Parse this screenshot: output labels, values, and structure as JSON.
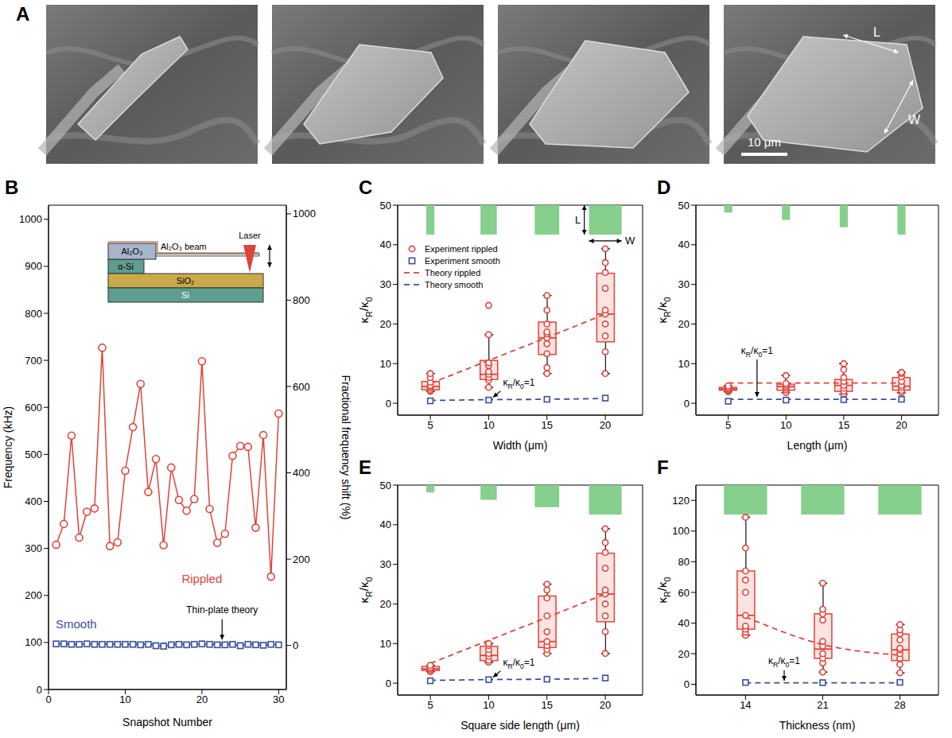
{
  "chart_data": [
    {
      "panel": "A",
      "type": "image",
      "annotations": [
        "L",
        "W",
        "10 μm"
      ]
    },
    {
      "panel": "B",
      "type": "line",
      "xlabel": "Snapshot Number",
      "ylabel": "Frequency (kHz)",
      "y2label": "Fractional frequency shift (%)",
      "x": [
        1,
        2,
        3,
        4,
        5,
        6,
        7,
        8,
        9,
        10,
        11,
        12,
        13,
        14,
        15,
        16,
        17,
        18,
        19,
        20,
        21,
        22,
        23,
        24,
        25,
        26,
        27,
        28,
        29,
        30
      ],
      "xlim": [
        0,
        31
      ],
      "xticks": [
        0,
        10,
        20,
        30
      ],
      "ylim": [
        0,
        1030
      ],
      "yticks": [
        0,
        100,
        200,
        300,
        400,
        500,
        600,
        700,
        800,
        900,
        1000
      ],
      "y2lim": [
        -102,
        1020
      ],
      "y2ticks": [
        0,
        200,
        400,
        600,
        800,
        1000
      ],
      "inset_labels": [
        "Al₂O₃",
        "α-Si",
        "SiO₂",
        "Si",
        "Al₂O₃ beam",
        "Laser"
      ],
      "series": [
        {
          "name": "Rippled",
          "color": "#e0433a",
          "marker": "circle",
          "line_style": "solid",
          "values": [
            308,
            352,
            540,
            323,
            378,
            385,
            727,
            305,
            313,
            465,
            558,
            650,
            420,
            490,
            307,
            472,
            403,
            380,
            405,
            698,
            384,
            312,
            331,
            497,
            518,
            516,
            344,
            541,
            240,
            587
          ]
        },
        {
          "name": "Smooth",
          "color": "#3a4f9e",
          "marker": "square",
          "line_style": "solid",
          "values": [
            97,
            97,
            96,
            96,
            97,
            96,
            96,
            96,
            96,
            96,
            96,
            95,
            96,
            93,
            92,
            95,
            96,
            95,
            96,
            97,
            96,
            95,
            95,
            96,
            93,
            96,
            95,
            94,
            96,
            95
          ]
        },
        {
          "name": "Thin-plate theory",
          "color": "#5cc8e6",
          "line_style": "dashed",
          "values": [
            98,
            98,
            98,
            98,
            98,
            98,
            98,
            98,
            98,
            98,
            98,
            98,
            98,
            98,
            98,
            98,
            98,
            98,
            98,
            98,
            98,
            98,
            98,
            98,
            98,
            98,
            98,
            98,
            98,
            98
          ]
        }
      ]
    },
    {
      "panel": "C",
      "type": "box",
      "xlabel": "Width (μm)",
      "ylabel": "κR/κ0",
      "x": [
        5,
        10,
        15,
        20
      ],
      "xlim": [
        2.2,
        23.2
      ],
      "xticks": [
        5,
        10,
        15,
        20
      ],
      "ylim": [
        -3,
        50
      ],
      "yticks": [
        0,
        10,
        20,
        30,
        40,
        50
      ],
      "legend": "upper left",
      "annotations": [
        "κR/κ0=1"
      ],
      "dimension_labels": [
        "L",
        "W"
      ],
      "series": [
        {
          "name": "Experiment rippled",
          "type": "box",
          "color": "#e0433a",
          "marker": "circle",
          "whisker_low": [
            3.0,
            4.0,
            7.5,
            7.5
          ],
          "q1": [
            3.4,
            6.0,
            12.3,
            15.5
          ],
          "median": [
            4.2,
            7.3,
            16.5,
            22.5
          ],
          "q3": [
            5.5,
            10.8,
            20.5,
            32.8
          ],
          "whisker_high": [
            7.5,
            17.3,
            27.2,
            39.0
          ],
          "points": [
            [
              3.0,
              3.3,
              3.8,
              4.2,
              4.5,
              5.3,
              6.5,
              7.5
            ],
            [
              4.0,
              5.8,
              6.5,
              7.3,
              8.0,
              9.5,
              10.2,
              17.3,
              24.7
            ],
            [
              7.5,
              9.0,
              12.5,
              15.0,
              16.5,
              17.5,
              18.0,
              20.0,
              23.5,
              27.2
            ],
            [
              7.5,
              13.0,
              17.0,
              20.0,
              22.5,
              23.5,
              29.0,
              33.0,
              35.5,
              39.0
            ]
          ]
        },
        {
          "name": "Experiment smooth",
          "type": "scatter",
          "color": "#3a4f9e",
          "marker": "square",
          "values": [
            0.6,
            0.8,
            1.0,
            1.3
          ]
        },
        {
          "name": "Theory rippled",
          "type": "line",
          "color": "#e0433a",
          "line_style": "dashed",
          "values": [
            5.0,
            10.8,
            16.6,
            22.5
          ]
        },
        {
          "name": "Theory smooth",
          "type": "line",
          "color": "#3a4f9e",
          "line_style": "dashed",
          "values": [
            0.7,
            0.9,
            1.0,
            1.2
          ]
        }
      ]
    },
    {
      "panel": "D",
      "type": "box",
      "xlabel": "Length (μm)",
      "ylabel": "κR/κ0",
      "x": [
        5,
        10,
        15,
        20
      ],
      "xlim": [
        2.2,
        23.2
      ],
      "xticks": [
        5,
        10,
        15,
        20
      ],
      "ylim": [
        -3,
        50
      ],
      "yticks": [
        0,
        10,
        20,
        30,
        40,
        50
      ],
      "annotations": [
        "κR/κ0=1"
      ],
      "series": [
        {
          "name": "Experiment rippled",
          "type": "box",
          "color": "#e0433a",
          "marker": "circle",
          "whisker_low": [
            2.9,
            2.7,
            2.3,
            2.7
          ],
          "q1": [
            3.3,
            3.3,
            3.0,
            3.3
          ],
          "median": [
            3.6,
            4.2,
            4.5,
            4.3
          ],
          "q3": [
            4.0,
            4.8,
            6.0,
            6.5
          ],
          "whisker_high": [
            4.4,
            7.0,
            10.0,
            7.8
          ],
          "points": [
            [
              2.9,
              3.2,
              3.5,
              3.7,
              4.0,
              4.4
            ],
            [
              2.7,
              3.3,
              3.8,
              4.2,
              4.6,
              5.0,
              7.0
            ],
            [
              2.3,
              3.0,
              3.8,
              4.5,
              5.5,
              6.5,
              8.5,
              10.0
            ],
            [
              2.7,
              3.2,
              4.0,
              4.5,
              5.5,
              6.7,
              7.5,
              7.8
            ]
          ]
        },
        {
          "name": "Experiment smooth",
          "type": "scatter",
          "color": "#3a4f9e",
          "marker": "square",
          "values": [
            0.5,
            0.8,
            0.9,
            1.0
          ]
        },
        {
          "name": "Theory rippled",
          "type": "line",
          "color": "#e0433a",
          "line_style": "dashed",
          "values": [
            5.1,
            5.1,
            5.1,
            5.1
          ]
        },
        {
          "name": "Theory smooth",
          "type": "line",
          "color": "#3a4f9e",
          "line_style": "dashed",
          "values": [
            1.0,
            1.0,
            1.0,
            1.0
          ]
        }
      ]
    },
    {
      "panel": "E",
      "type": "box",
      "xlabel": "Square side length (μm)",
      "ylabel": "κR/κ0",
      "x": [
        5,
        10,
        15,
        20
      ],
      "xlim": [
        2.2,
        23.2
      ],
      "xticks": [
        5,
        10,
        15,
        20
      ],
      "ylim": [
        -3,
        50
      ],
      "yticks": [
        0,
        10,
        20,
        30,
        40,
        50
      ],
      "annotations": [
        "κR/κ0=1"
      ],
      "series": [
        {
          "name": "Experiment rippled",
          "type": "box",
          "color": "#e0433a",
          "marker": "circle",
          "whisker_low": [
            2.9,
            5.3,
            7.5,
            7.5
          ],
          "q1": [
            3.2,
            5.7,
            9.0,
            15.5
          ],
          "median": [
            3.6,
            7.0,
            10.5,
            22.5
          ],
          "q3": [
            4.2,
            9.3,
            22.0,
            32.8
          ],
          "whisker_high": [
            4.5,
            10.0,
            25.0,
            39.0
          ],
          "points": [
            [
              2.9,
              3.3,
              3.7,
              4.0,
              4.5
            ],
            [
              5.3,
              5.8,
              6.8,
              7.5,
              8.5,
              9.5,
              10.0
            ],
            [
              7.5,
              8.5,
              9.5,
              10.5,
              13.0,
              17.0,
              21.5,
              23.5,
              25.0
            ],
            [
              7.5,
              13.0,
              17.0,
              20.0,
              22.5,
              23.5,
              29.0,
              33.0,
              35.5,
              39.0
            ]
          ]
        },
        {
          "name": "Experiment smooth",
          "type": "scatter",
          "color": "#3a4f9e",
          "marker": "square",
          "values": [
            0.6,
            0.9,
            1.0,
            1.3
          ]
        },
        {
          "name": "Theory rippled",
          "type": "line",
          "color": "#e0433a",
          "line_style": "dashed",
          "values": [
            5.0,
            10.8,
            16.6,
            22.5
          ]
        },
        {
          "name": "Theory smooth",
          "type": "line",
          "color": "#3a4f9e",
          "line_style": "dashed",
          "values": [
            0.7,
            0.9,
            1.0,
            1.2
          ]
        }
      ]
    },
    {
      "panel": "F",
      "type": "box",
      "xlabel": "Thickness (nm)",
      "ylabel": "κR/κ0",
      "x": [
        14,
        21,
        28
      ],
      "xlim": [
        9.5,
        31.5
      ],
      "xticks": [
        14,
        21,
        28
      ],
      "ylim": [
        -7,
        130
      ],
      "yticks": [
        0,
        20,
        40,
        60,
        80,
        100,
        120
      ],
      "annotations": [
        "κR/κ0=1"
      ],
      "series": [
        {
          "name": "Experiment rippled",
          "type": "box",
          "color": "#e0433a",
          "marker": "circle",
          "whisker_low": [
            32,
            8,
            7.5
          ],
          "q1": [
            36,
            17,
            15.5
          ],
          "median": [
            45,
            23,
            22.5
          ],
          "q3": [
            74,
            46,
            32.8
          ],
          "whisker_high": [
            109,
            66,
            39.0
          ],
          "points": [
            [
              32,
              34,
              36,
              38,
              45,
              60,
              68,
              74,
              89,
              109
            ],
            [
              8,
              14,
              17,
              20,
              25,
              28,
              42,
              46,
              49,
              66
            ],
            [
              7.5,
              13.0,
              17.0,
              20.0,
              22.5,
              23.5,
              29.0,
              33.0,
              35.5,
              39.0
            ]
          ]
        },
        {
          "name": "Experiment smooth",
          "type": "scatter",
          "color": "#3a4f9e",
          "marker": "square",
          "values": [
            1.2,
            1.1,
            1.3
          ]
        },
        {
          "name": "Theory rippled",
          "type": "line",
          "color": "#e0433a",
          "line_style": "dashed",
          "values": [
            44,
            26,
            19
          ]
        },
        {
          "name": "Theory smooth",
          "type": "line",
          "color": "#3a4f9e",
          "line_style": "dashed",
          "values": [
            1.0,
            1.0,
            1.0
          ]
        }
      ]
    }
  ]
}
